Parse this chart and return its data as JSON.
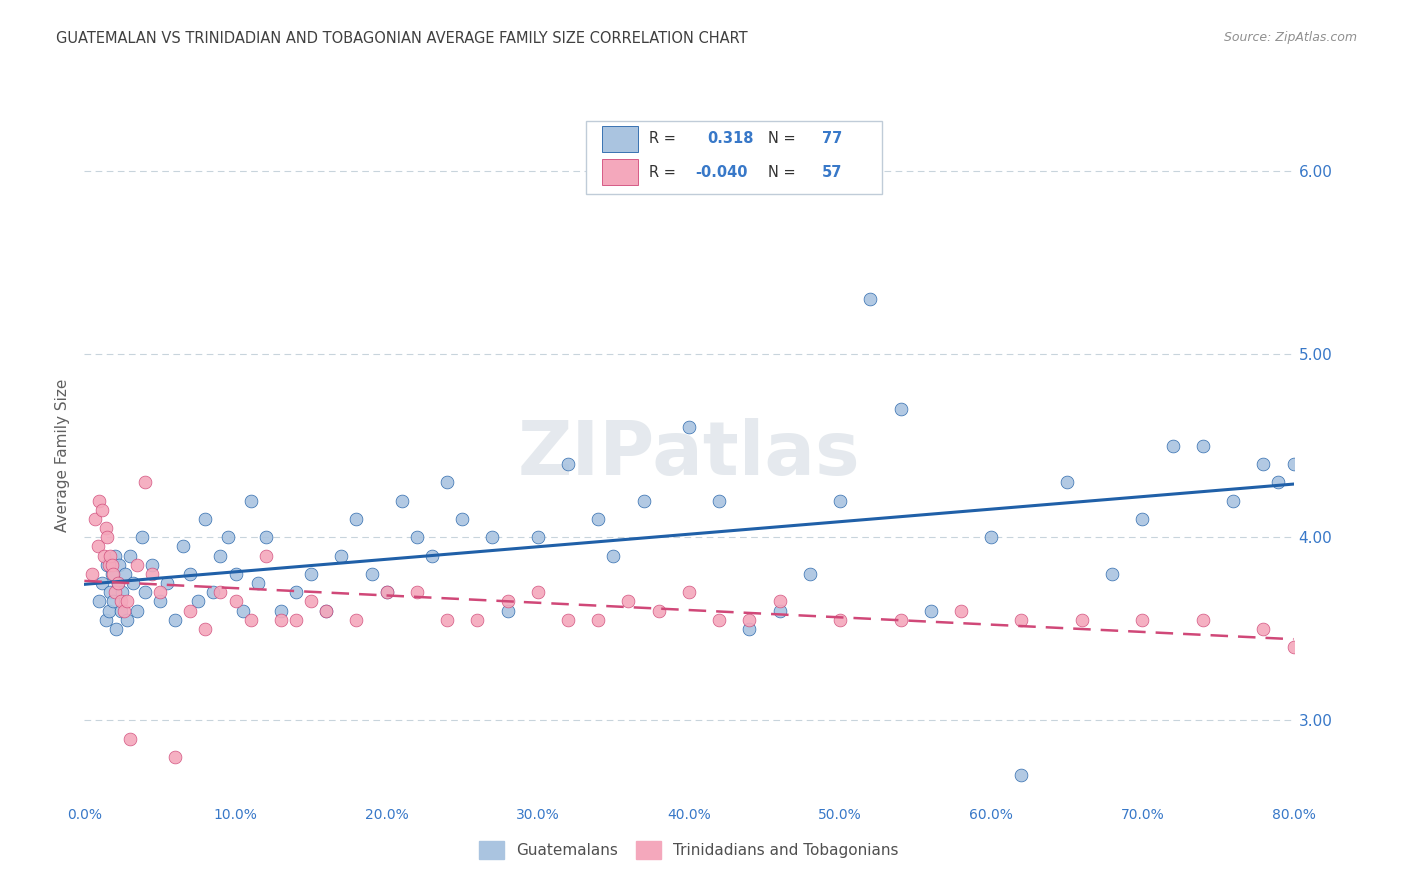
{
  "title": "GUATEMALAN VS TRINIDADIAN AND TOBAGONIAN AVERAGE FAMILY SIZE CORRELATION CHART",
  "source": "Source: ZipAtlas.com",
  "ylabel": "Average Family Size",
  "watermark": "ZIPatlas",
  "legend_labels": [
    "Guatemalans",
    "Trinidadians and Tobagonians"
  ],
  "r_guatemalan": 0.318,
  "n_guatemalan": 77,
  "r_trinidadian": -0.04,
  "n_trinidadian": 57,
  "xlim": [
    0.0,
    80.0
  ],
  "ylim": [
    2.55,
    6.35
  ],
  "yticks": [
    3.0,
    4.0,
    5.0,
    6.0
  ],
  "xticks": [
    0.0,
    10.0,
    20.0,
    30.0,
    40.0,
    50.0,
    60.0,
    70.0,
    80.0
  ],
  "color_guatemalan": "#aac4e0",
  "color_trinidadian": "#f4a8bc",
  "trend_color_guatemalan": "#2060a8",
  "trend_color_trinidadian": "#d04878",
  "background_color": "#ffffff",
  "grid_color": "#c8d4dc",
  "title_color": "#404040",
  "axis_color": "#3878c8",
  "guatemalan_x": [
    1.0,
    1.2,
    1.4,
    1.5,
    1.6,
    1.7,
    1.8,
    1.9,
    2.0,
    2.1,
    2.2,
    2.3,
    2.4,
    2.5,
    2.7,
    2.8,
    3.0,
    3.2,
    3.5,
    3.8,
    4.0,
    4.5,
    5.0,
    5.5,
    6.0,
    6.5,
    7.0,
    7.5,
    8.0,
    8.5,
    9.0,
    9.5,
    10.0,
    10.5,
    11.0,
    11.5,
    12.0,
    13.0,
    14.0,
    15.0,
    16.0,
    17.0,
    18.0,
    19.0,
    20.0,
    21.0,
    22.0,
    23.0,
    24.0,
    25.0,
    27.0,
    28.0,
    30.0,
    32.0,
    34.0,
    35.0,
    37.0,
    40.0,
    42.0,
    44.0,
    46.0,
    48.0,
    50.0,
    52.0,
    54.0,
    56.0,
    60.0,
    62.0,
    65.0,
    68.0,
    70.0,
    72.0,
    74.0,
    76.0,
    78.0,
    79.0,
    80.0
  ],
  "guatemalan_y": [
    3.65,
    3.75,
    3.55,
    3.85,
    3.6,
    3.7,
    3.8,
    3.65,
    3.9,
    3.5,
    3.75,
    3.85,
    3.6,
    3.7,
    3.8,
    3.55,
    3.9,
    3.75,
    3.6,
    4.0,
    3.7,
    3.85,
    3.65,
    3.75,
    3.55,
    3.95,
    3.8,
    3.65,
    4.1,
    3.7,
    3.9,
    4.0,
    3.8,
    3.6,
    4.2,
    3.75,
    4.0,
    3.6,
    3.7,
    3.8,
    3.6,
    3.9,
    4.1,
    3.8,
    3.7,
    4.2,
    4.0,
    3.9,
    4.3,
    4.1,
    4.0,
    3.6,
    4.0,
    4.4,
    4.1,
    3.9,
    4.2,
    4.6,
    4.2,
    3.5,
    3.6,
    3.8,
    4.2,
    5.3,
    4.7,
    3.6,
    4.0,
    2.7,
    4.3,
    3.8,
    4.1,
    4.5,
    4.5,
    4.2,
    4.4,
    4.3,
    4.4
  ],
  "trinidadian_x": [
    0.5,
    0.7,
    0.9,
    1.0,
    1.2,
    1.3,
    1.4,
    1.5,
    1.6,
    1.7,
    1.8,
    1.9,
    2.0,
    2.2,
    2.4,
    2.6,
    2.8,
    3.0,
    3.5,
    4.0,
    4.5,
    5.0,
    6.0,
    7.0,
    8.0,
    9.0,
    10.0,
    11.0,
    12.0,
    13.0,
    14.0,
    15.0,
    16.0,
    18.0,
    20.0,
    22.0,
    24.0,
    26.0,
    28.0,
    30.0,
    32.0,
    34.0,
    36.0,
    38.0,
    40.0,
    42.0,
    44.0,
    46.0,
    50.0,
    54.0,
    58.0,
    62.0,
    66.0,
    70.0,
    74.0,
    78.0,
    80.0
  ],
  "trinidadian_y": [
    3.8,
    4.1,
    3.95,
    4.2,
    4.15,
    3.9,
    4.05,
    4.0,
    3.85,
    3.9,
    3.85,
    3.8,
    3.7,
    3.75,
    3.65,
    3.6,
    3.65,
    2.9,
    3.85,
    4.3,
    3.8,
    3.7,
    2.8,
    3.6,
    3.5,
    3.7,
    3.65,
    3.55,
    3.9,
    3.55,
    3.55,
    3.65,
    3.6,
    3.55,
    3.7,
    3.7,
    3.55,
    3.55,
    3.65,
    3.7,
    3.55,
    3.55,
    3.65,
    3.6,
    3.7,
    3.55,
    3.55,
    3.65,
    3.55,
    3.55,
    3.6,
    3.55,
    3.55,
    3.55,
    3.55,
    3.5,
    3.4
  ]
}
